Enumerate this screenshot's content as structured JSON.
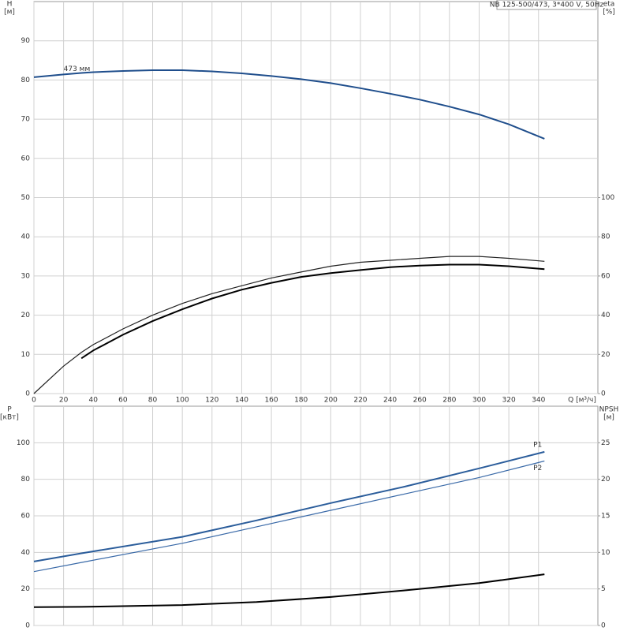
{
  "chart_data": [
    {
      "type": "line",
      "title": "NB 125-500/473, 3*400 V, 50Hz",
      "y_label": "H",
      "y_unit": "[м]",
      "y2_label": "eta",
      "y2_unit": "[%]",
      "x_label": "Q [м³/ч]",
      "xlim": [
        0,
        380
      ],
      "xticks": [
        0,
        20,
        40,
        60,
        80,
        100,
        120,
        140,
        160,
        180,
        200,
        220,
        240,
        260,
        280,
        300,
        320,
        340
      ],
      "ylim": [
        0,
        100
      ],
      "yticks": [
        0,
        10,
        20,
        30,
        40,
        50,
        60,
        70,
        80,
        90
      ],
      "y2lim": [
        0,
        200
      ],
      "y2ticks": [
        0,
        20,
        40,
        60,
        80,
        100
      ],
      "grid": true,
      "show_xtick_labels": true,
      "x": [
        0,
        20,
        32,
        40,
        60,
        80,
        100,
        120,
        140,
        160,
        180,
        200,
        220,
        240,
        260,
        280,
        300,
        320,
        344
      ],
      "series": [
        {
          "name": "473 мм",
          "color": "#1f4e8c",
          "values": [
            80.7,
            81.4,
            81.8,
            82.0,
            82.3,
            82.5,
            82.5,
            82.2,
            81.7,
            81.0,
            80.2,
            79.2,
            77.9,
            76.5,
            75.0,
            73.2,
            71.2,
            68.7,
            65.0
          ]
        },
        {
          "color": "#222222",
          "axis": "y2",
          "values": [
            0,
            14,
            21,
            25,
            33,
            40,
            46,
            51,
            55,
            59,
            62,
            65,
            67,
            68,
            69,
            70,
            70,
            69,
            67.5
          ]
        },
        {
          "color": "#000000",
          "axis": "y2",
          "values": [
            null,
            null,
            18,
            22,
            30,
            37,
            43,
            48.5,
            53,
            56.5,
            59.5,
            61.5,
            63,
            64.5,
            65.3,
            65.8,
            65.8,
            65,
            63.5
          ]
        }
      ]
    },
    {
      "type": "line",
      "y_label": "P",
      "y_unit": "[кВт]",
      "y2_label": "NPSH",
      "y2_unit": "[м]",
      "xlim": [
        0,
        380
      ],
      "xticks": [
        0,
        20,
        40,
        60,
        80,
        100,
        120,
        140,
        160,
        180,
        200,
        220,
        240,
        260,
        280,
        300,
        320,
        340
      ],
      "ylim": [
        0,
        120
      ],
      "yticks": [
        0,
        20,
        40,
        60,
        80,
        100
      ],
      "y2lim": [
        0,
        30
      ],
      "y2ticks": [
        0,
        5,
        10,
        15,
        20,
        25
      ],
      "grid": true,
      "show_xtick_labels": false,
      "x": [
        0,
        32,
        100,
        150,
        200,
        250,
        300,
        344
      ],
      "series": [
        {
          "name": "P1",
          "color": "#2b5d9b",
          "values": [
            35,
            39.5,
            48.5,
            57.5,
            67,
            76,
            86,
            95
          ]
        },
        {
          "name": "P2",
          "color": "#3a6aa8",
          "values": [
            29.5,
            34.5,
            45,
            54,
            63,
            72,
            81,
            90
          ]
        },
        {
          "color": "#000000",
          "axis": "y2",
          "values": [
            2.5,
            2.55,
            2.8,
            3.2,
            3.9,
            4.8,
            5.8,
            7.0
          ]
        }
      ]
    }
  ]
}
